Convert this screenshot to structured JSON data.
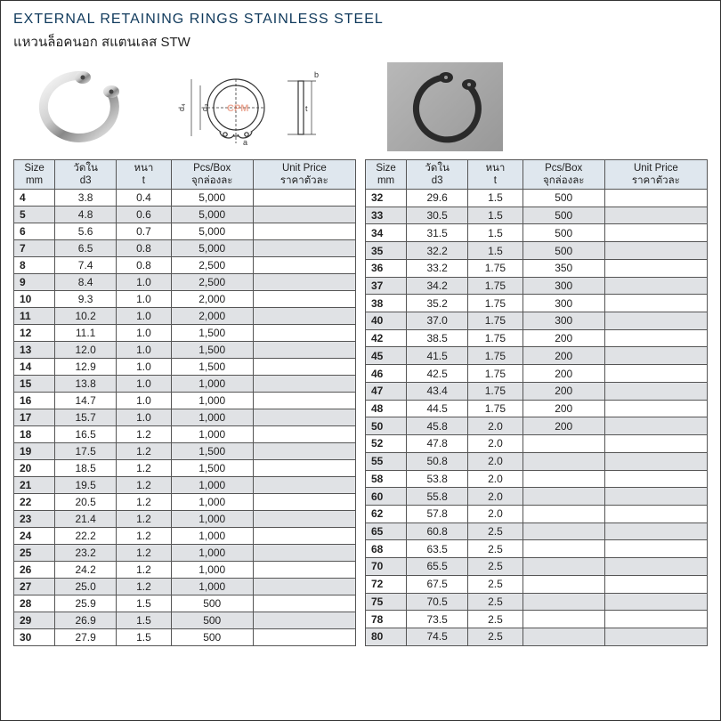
{
  "title_en": "EXTERNAL  RETAINING  RINGS STAINLESS STEEL",
  "title_th": "แหวนล็อคนอก สแตนเลส STW",
  "header": {
    "size_label1": "Size",
    "size_label2": "mm",
    "d3_label1": "วัดใน",
    "d3_label2": "d3",
    "t_label1": "หนา",
    "t_label2": "t",
    "pcs_label1": "Pcs/Box",
    "pcs_label2": "จุกล่องละ",
    "price_label1": "Unit Price",
    "price_label2": "ราคาตัวละ"
  },
  "colors": {
    "header_bg": "#dfe7ee",
    "shade_bg": "#e0e2e5",
    "title_color": "#103a5c",
    "border": "#555555",
    "photo_bg": "#a8a8a8"
  },
  "table_left": [
    {
      "size": "4",
      "d3": "3.8",
      "t": "0.4",
      "pcs": "5,000",
      "price": "",
      "shade": false
    },
    {
      "size": "5",
      "d3": "4.8",
      "t": "0.6",
      "pcs": "5,000",
      "price": "",
      "shade": true
    },
    {
      "size": "6",
      "d3": "5.6",
      "t": "0.7",
      "pcs": "5,000",
      "price": "",
      "shade": false
    },
    {
      "size": "7",
      "d3": "6.5",
      "t": "0.8",
      "pcs": "5,000",
      "price": "",
      "shade": true
    },
    {
      "size": "8",
      "d3": "7.4",
      "t": "0.8",
      "pcs": "2,500",
      "price": "",
      "shade": false
    },
    {
      "size": "9",
      "d3": "8.4",
      "t": "1.0",
      "pcs": "2,500",
      "price": "",
      "shade": true
    },
    {
      "size": "10",
      "d3": "9.3",
      "t": "1.0",
      "pcs": "2,000",
      "price": "",
      "shade": false
    },
    {
      "size": "11",
      "d3": "10.2",
      "t": "1.0",
      "pcs": "2,000",
      "price": "",
      "shade": true
    },
    {
      "size": "12",
      "d3": "11.1",
      "t": "1.0",
      "pcs": "1,500",
      "price": "",
      "shade": false
    },
    {
      "size": "13",
      "d3": "12.0",
      "t": "1.0",
      "pcs": "1,500",
      "price": "",
      "shade": true
    },
    {
      "size": "14",
      "d3": "12.9",
      "t": "1.0",
      "pcs": "1,500",
      "price": "",
      "shade": false
    },
    {
      "size": "15",
      "d3": "13.8",
      "t": "1.0",
      "pcs": "1,000",
      "price": "",
      "shade": true
    },
    {
      "size": "16",
      "d3": "14.7",
      "t": "1.0",
      "pcs": "1,000",
      "price": "",
      "shade": false
    },
    {
      "size": "17",
      "d3": "15.7",
      "t": "1.0",
      "pcs": "1,000",
      "price": "",
      "shade": true
    },
    {
      "size": "18",
      "d3": "16.5",
      "t": "1.2",
      "pcs": "1,000",
      "price": "",
      "shade": false
    },
    {
      "size": "19",
      "d3": "17.5",
      "t": "1.2",
      "pcs": "1,500",
      "price": "",
      "shade": true
    },
    {
      "size": "20",
      "d3": "18.5",
      "t": "1.2",
      "pcs": "1,500",
      "price": "",
      "shade": false
    },
    {
      "size": "21",
      "d3": "19.5",
      "t": "1.2",
      "pcs": "1,000",
      "price": "",
      "shade": true
    },
    {
      "size": "22",
      "d3": "20.5",
      "t": "1.2",
      "pcs": "1,000",
      "price": "",
      "shade": false
    },
    {
      "size": "23",
      "d3": "21.4",
      "t": "1.2",
      "pcs": "1,000",
      "price": "",
      "shade": true
    },
    {
      "size": "24",
      "d3": "22.2",
      "t": "1.2",
      "pcs": "1,000",
      "price": "",
      "shade": false
    },
    {
      "size": "25",
      "d3": "23.2",
      "t": "1.2",
      "pcs": "1,000",
      "price": "",
      "shade": true
    },
    {
      "size": "26",
      "d3": "24.2",
      "t": "1.2",
      "pcs": "1,000",
      "price": "",
      "shade": false
    },
    {
      "size": "27",
      "d3": "25.0",
      "t": "1.2",
      "pcs": "1,000",
      "price": "",
      "shade": true
    },
    {
      "size": "28",
      "d3": "25.9",
      "t": "1.5",
      "pcs": "500",
      "price": "",
      "shade": false
    },
    {
      "size": "29",
      "d3": "26.9",
      "t": "1.5",
      "pcs": "500",
      "price": "",
      "shade": true
    },
    {
      "size": "30",
      "d3": "27.9",
      "t": "1.5",
      "pcs": "500",
      "price": "",
      "shade": false
    }
  ],
  "table_right": [
    {
      "size": "32",
      "d3": "29.6",
      "t": "1.5",
      "pcs": "500",
      "price": "",
      "shade": false
    },
    {
      "size": "33",
      "d3": "30.5",
      "t": "1.5",
      "pcs": "500",
      "price": "",
      "shade": true
    },
    {
      "size": "34",
      "d3": "31.5",
      "t": "1.5",
      "pcs": "500",
      "price": "",
      "shade": false
    },
    {
      "size": "35",
      "d3": "32.2",
      "t": "1.5",
      "pcs": "500",
      "price": "",
      "shade": true
    },
    {
      "size": "36",
      "d3": "33.2",
      "t": "1.75",
      "pcs": "350",
      "price": "",
      "shade": false
    },
    {
      "size": "37",
      "d3": "34.2",
      "t": "1.75",
      "pcs": "300",
      "price": "",
      "shade": true
    },
    {
      "size": "38",
      "d3": "35.2",
      "t": "1.75",
      "pcs": "300",
      "price": "",
      "shade": false
    },
    {
      "size": "40",
      "d3": "37.0",
      "t": "1.75",
      "pcs": "300",
      "price": "",
      "shade": true
    },
    {
      "size": "42",
      "d3": "38.5",
      "t": "1.75",
      "pcs": "200",
      "price": "",
      "shade": false
    },
    {
      "size": "45",
      "d3": "41.5",
      "t": "1.75",
      "pcs": "200",
      "price": "",
      "shade": true
    },
    {
      "size": "46",
      "d3": "42.5",
      "t": "1.75",
      "pcs": "200",
      "price": "",
      "shade": false
    },
    {
      "size": "47",
      "d3": "43.4",
      "t": "1.75",
      "pcs": "200",
      "price": "",
      "shade": true
    },
    {
      "size": "48",
      "d3": "44.5",
      "t": "1.75",
      "pcs": "200",
      "price": "",
      "shade": false
    },
    {
      "size": "50",
      "d3": "45.8",
      "t": "2.0",
      "pcs": "200",
      "price": "",
      "shade": true
    },
    {
      "size": "52",
      "d3": "47.8",
      "t": "2.0",
      "pcs": "",
      "price": "",
      "shade": false
    },
    {
      "size": "55",
      "d3": "50.8",
      "t": "2.0",
      "pcs": "",
      "price": "",
      "shade": true
    },
    {
      "size": "58",
      "d3": "53.8",
      "t": "2.0",
      "pcs": "",
      "price": "",
      "shade": false
    },
    {
      "size": "60",
      "d3": "55.8",
      "t": "2.0",
      "pcs": "",
      "price": "",
      "shade": true
    },
    {
      "size": "62",
      "d3": "57.8",
      "t": "2.0",
      "pcs": "",
      "price": "",
      "shade": false
    },
    {
      "size": "65",
      "d3": "60.8",
      "t": "2.5",
      "pcs": "",
      "price": "",
      "shade": true
    },
    {
      "size": "68",
      "d3": "63.5",
      "t": "2.5",
      "pcs": "",
      "price": "",
      "shade": false
    },
    {
      "size": "70",
      "d3": "65.5",
      "t": "2.5",
      "pcs": "",
      "price": "",
      "shade": true
    },
    {
      "size": "72",
      "d3": "67.5",
      "t": "2.5",
      "pcs": "",
      "price": "",
      "shade": false
    },
    {
      "size": "75",
      "d3": "70.5",
      "t": "2.5",
      "pcs": "",
      "price": "",
      "shade": true
    },
    {
      "size": "78",
      "d3": "73.5",
      "t": "2.5",
      "pcs": "",
      "price": "",
      "shade": false
    },
    {
      "size": "80",
      "d3": "74.5",
      "t": "2.5",
      "pcs": "",
      "price": "",
      "shade": true
    }
  ]
}
